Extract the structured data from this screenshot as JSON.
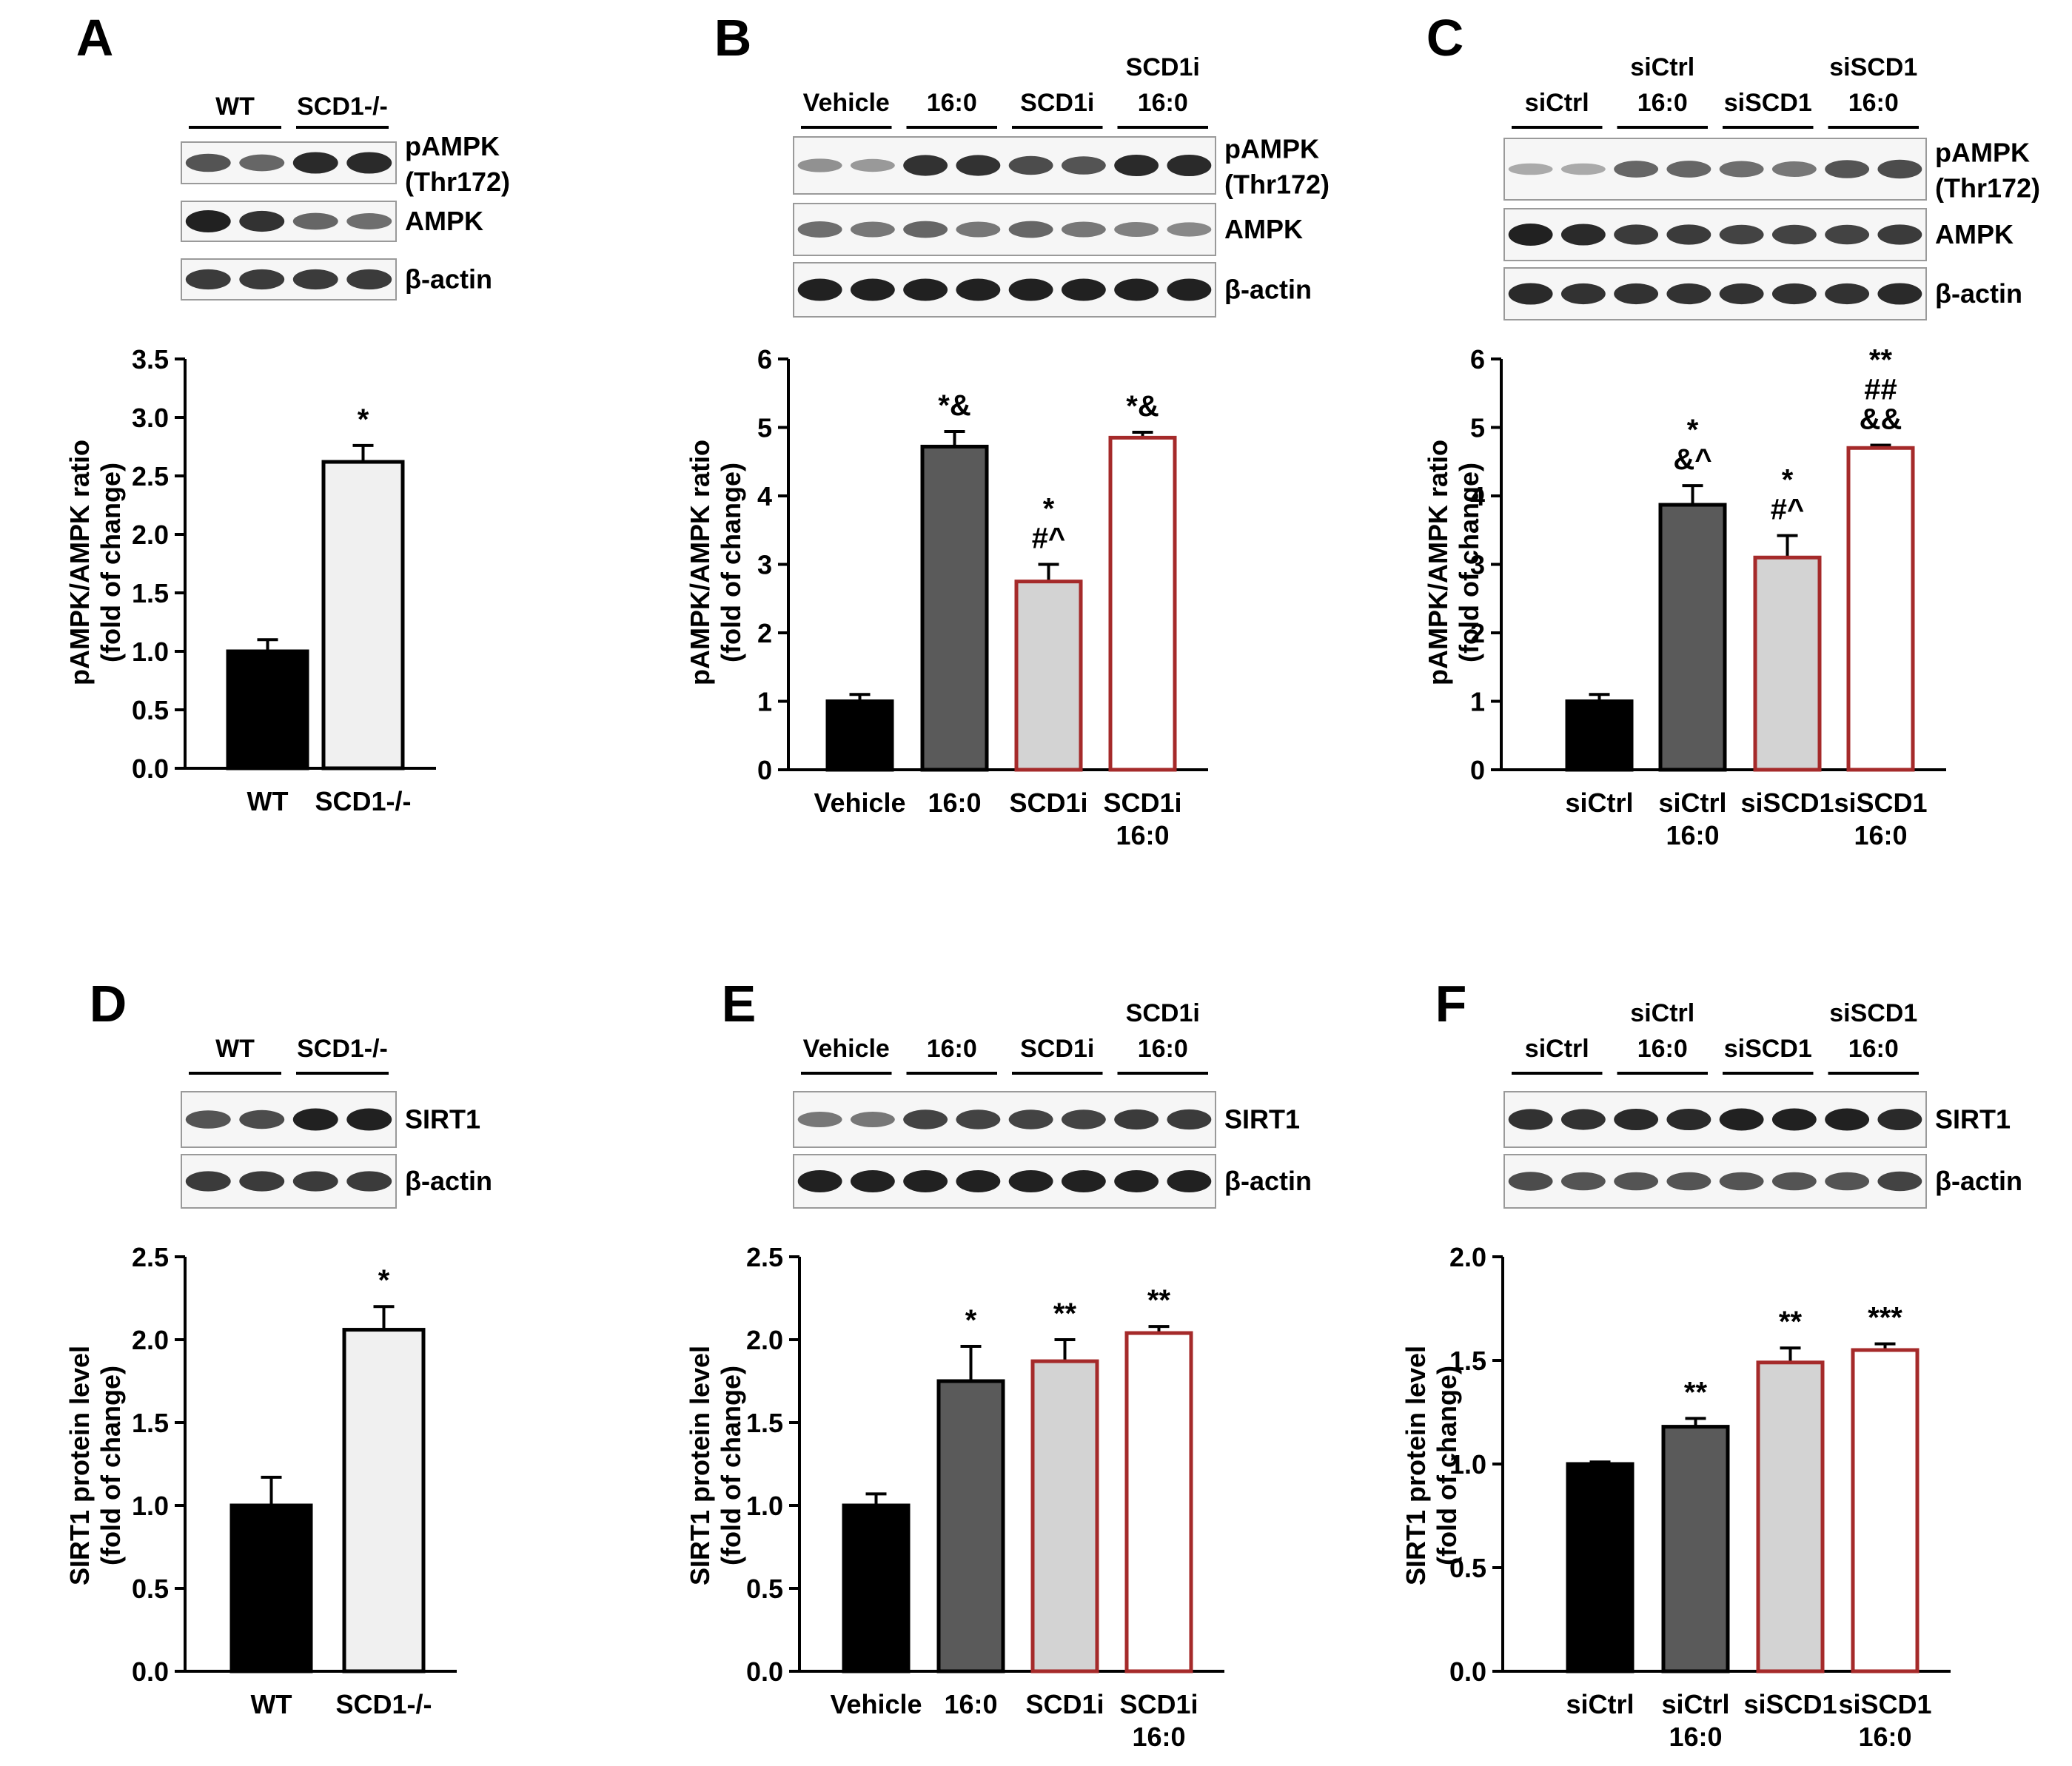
{
  "colors": {
    "black": "#000000",
    "dark_gray": "#5a5a5a",
    "light_gray": "#d3d3d3",
    "very_light_gray": "#f0f0f0",
    "white": "#ffffff",
    "red_outline": "#a52a2a"
  },
  "chart_data": [
    {
      "panel": "A",
      "type": "bar",
      "categories": [
        "WT",
        "SCD1-/-"
      ],
      "category_lines": [
        [
          "WT"
        ],
        [
          "SCD1-/-"
        ]
      ],
      "values": [
        1.0,
        2.62
      ],
      "errors": [
        0.1,
        0.14
      ],
      "significance": [
        [],
        [
          "*"
        ]
      ],
      "ylabel": [
        "pAMPK/AMPK ratio",
        "(fold of change)"
      ],
      "ylim": [
        0,
        3.5
      ],
      "yticks": [
        "0.0",
        "0.5",
        "1.0",
        "1.5",
        "2.0",
        "2.5",
        "3.0",
        "3.5"
      ],
      "blot_groups": [
        [
          "WT"
        ],
        [
          "SCD1-/-"
        ]
      ],
      "blot_labels": [
        [
          "pAMPK",
          "(Thr172)"
        ],
        [
          "AMPK"
        ],
        [
          "β-actin"
        ]
      ]
    },
    {
      "panel": "B",
      "type": "bar",
      "categories": [
        "Vehicle",
        "16:0",
        "SCD1i",
        "SCD1i 16:0"
      ],
      "category_lines": [
        [
          "Vehicle"
        ],
        [
          "16:0"
        ],
        [
          "SCD1i"
        ],
        [
          "SCD1i",
          "16:0"
        ]
      ],
      "values": [
        1.0,
        4.72,
        2.75,
        4.85
      ],
      "errors": [
        0.1,
        0.22,
        0.25,
        0.08
      ],
      "significance": [
        [],
        [
          "*&"
        ],
        [
          "*",
          "#^"
        ],
        [
          "*&"
        ]
      ],
      "ylabel": [
        "pAMPK/AMPK ratio",
        "(fold of change)"
      ],
      "ylim": [
        0,
        6
      ],
      "yticks": [
        "0",
        "1",
        "2",
        "3",
        "4",
        "5",
        "6"
      ],
      "blot_groups": [
        [
          "Vehicle"
        ],
        [
          "16:0"
        ],
        [
          "SCD1i"
        ],
        [
          "SCD1i",
          "16:0"
        ]
      ],
      "blot_labels": [
        [
          "pAMPK",
          "(Thr172)"
        ],
        [
          "AMPK"
        ],
        [
          "β-actin"
        ]
      ]
    },
    {
      "panel": "C",
      "type": "bar",
      "categories": [
        "siCtrl",
        "siCtrl 16:0",
        "siSCD1",
        "siSCD1 16:0"
      ],
      "category_lines": [
        [
          "siCtrl"
        ],
        [
          "siCtrl",
          "16:0"
        ],
        [
          "siSCD1"
        ],
        [
          "siSCD1",
          "16:0"
        ]
      ],
      "values": [
        1.0,
        3.87,
        3.1,
        4.7
      ],
      "errors": [
        0.1,
        0.28,
        0.32,
        0.04
      ],
      "significance": [
        [],
        [
          "*",
          "&^"
        ],
        [
          "*",
          "#^"
        ],
        [
          "**",
          "##",
          "&&"
        ]
      ],
      "ylabel": [
        "pAMPK/AMPK ratio",
        "(fold of change)"
      ],
      "ylim": [
        0,
        6
      ],
      "yticks": [
        "0",
        "1",
        "2",
        "3",
        "4",
        "5",
        "6"
      ],
      "blot_groups": [
        [
          "siCtrl"
        ],
        [
          "siCtrl",
          "16:0"
        ],
        [
          "siSCD1"
        ],
        [
          "siSCD1",
          "16:0"
        ]
      ],
      "blot_labels": [
        [
          "pAMPK",
          "(Thr172)"
        ],
        [
          "AMPK"
        ],
        [
          "β-actin"
        ]
      ]
    },
    {
      "panel": "D",
      "type": "bar",
      "categories": [
        "WT",
        "SCD1-/-"
      ],
      "category_lines": [
        [
          "WT"
        ],
        [
          "SCD1-/-"
        ]
      ],
      "values": [
        1.0,
        2.06
      ],
      "errors": [
        0.17,
        0.14
      ],
      "significance": [
        [],
        [
          "*"
        ]
      ],
      "ylabel": [
        "SIRT1 protein level",
        "(fold of change)"
      ],
      "ylim": [
        0,
        2.5
      ],
      "yticks": [
        "0.0",
        "0.5",
        "1.0",
        "1.5",
        "2.0",
        "2.5"
      ],
      "blot_groups": [
        [
          "WT"
        ],
        [
          "SCD1-/-"
        ]
      ],
      "blot_labels": [
        [
          "SIRT1"
        ],
        [
          "β-actin"
        ]
      ]
    },
    {
      "panel": "E",
      "type": "bar",
      "categories": [
        "Vehicle",
        "16:0",
        "SCD1i",
        "SCD1i 16:0"
      ],
      "category_lines": [
        [
          "Vehicle"
        ],
        [
          "16:0"
        ],
        [
          "SCD1i"
        ],
        [
          "SCD1i",
          "16:0"
        ]
      ],
      "values": [
        1.0,
        1.75,
        1.87,
        2.04
      ],
      "errors": [
        0.07,
        0.21,
        0.13,
        0.04
      ],
      "significance": [
        [],
        [
          "*"
        ],
        [
          "**"
        ],
        [
          "**"
        ]
      ],
      "ylabel": [
        "SIRT1 protein level",
        "(fold of change)"
      ],
      "ylim": [
        0,
        2.5
      ],
      "yticks": [
        "0.0",
        "0.5",
        "1.0",
        "1.5",
        "2.0",
        "2.5"
      ],
      "blot_groups": [
        [
          "Vehicle"
        ],
        [
          "16:0"
        ],
        [
          "SCD1i"
        ],
        [
          "SCD1i",
          "16:0"
        ]
      ],
      "blot_labels": [
        [
          "SIRT1"
        ],
        [
          "β-actin"
        ]
      ]
    },
    {
      "panel": "F",
      "type": "bar",
      "categories": [
        "siCtrl",
        "siCtrl 16:0",
        "siSCD1",
        "siSCD1 16:0"
      ],
      "category_lines": [
        [
          "siCtrl"
        ],
        [
          "siCtrl",
          "16:0"
        ],
        [
          "siSCD1"
        ],
        [
          "siSCD1",
          "16:0"
        ]
      ],
      "values": [
        1.0,
        1.18,
        1.49,
        1.55
      ],
      "errors": [
        0.01,
        0.04,
        0.07,
        0.03
      ],
      "significance": [
        [],
        [
          "**"
        ],
        [
          "**"
        ],
        [
          "***"
        ]
      ],
      "ylabel": [
        "SIRT1 protein level",
        "(fold of change)"
      ],
      "ylim": [
        0,
        2.0
      ],
      "yticks": [
        "0.0",
        "0.5",
        "1.0",
        "1.5",
        "2.0"
      ],
      "blot_groups": [
        [
          "siCtrl"
        ],
        [
          "siCtrl",
          "16:0"
        ],
        [
          "siSCD1"
        ],
        [
          "siSCD1",
          "16:0"
        ]
      ],
      "blot_labels": [
        [
          "SIRT1"
        ],
        [
          "β-actin"
        ]
      ]
    }
  ]
}
